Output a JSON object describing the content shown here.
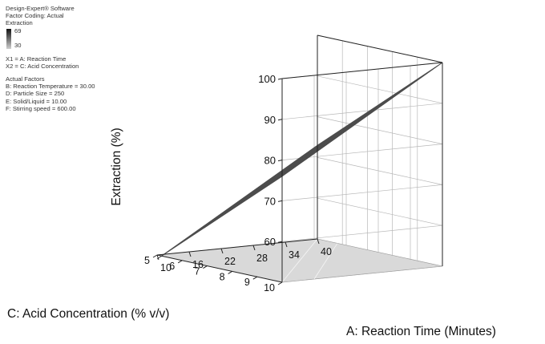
{
  "legend": {
    "software": "Design-Expert® Software",
    "coding": "Factor Coding: Actual",
    "response": "Extraction",
    "scale_high": "69",
    "scale_low": "30",
    "x1": "X1 = A: Reaction Time",
    "x2": "X2 = C: Acid Concentration",
    "actual_factors_title": "Actual Factors",
    "factors": [
      "B: Reaction Temperature = 30.00",
      "D: Particle Size = 250",
      "E: Solid/Liquid = 10.00",
      "F: Stirring speed = 600.00"
    ]
  },
  "chart_data": {
    "type": "surface",
    "zlabel": "Extraction (%)",
    "xlabel": "A: Reaction Time (Minutes)",
    "ylabel": "C: Acid Concentration (% v/v)",
    "x_ticks": [
      "10",
      "16",
      "22",
      "28",
      "34",
      "40"
    ],
    "y_ticks": [
      "5",
      "6",
      "7",
      "8",
      "9",
      "10"
    ],
    "z_ticks": [
      "60",
      "70",
      "80",
      "90",
      "100"
    ],
    "x_range": [
      10,
      40
    ],
    "y_range": [
      5,
      10
    ],
    "z_range": [
      50,
      100
    ],
    "surface_corners": [
      {
        "x": 10,
        "y": 5,
        "z": 49
      },
      {
        "x": 40,
        "y": 5,
        "z": 73
      },
      {
        "x": 10,
        "y": 10,
        "z": 76
      },
      {
        "x": 40,
        "y": 10,
        "z": 100
      }
    ],
    "surface_color": "#8a8a8a",
    "floor_color": "#d9d9d9",
    "grid": true
  }
}
